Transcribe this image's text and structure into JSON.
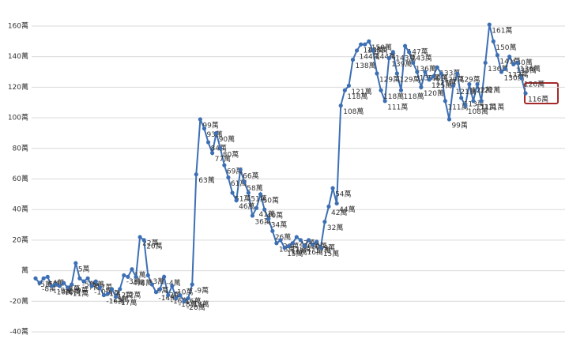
{
  "chart_data": {
    "type": "line",
    "categories": [
      null,
      null,
      null,
      null,
      null,
      null,
      null,
      null,
      null,
      null,
      null,
      null,
      null,
      null,
      null,
      null,
      null,
      null,
      null,
      null,
      null,
      null,
      null,
      null,
      null,
      null,
      null,
      null,
      null,
      null,
      null,
      null,
      null,
      null,
      null,
      null,
      null,
      null,
      null,
      null,
      null,
      null,
      null,
      null,
      null,
      null,
      null,
      null,
      null,
      null,
      null,
      null,
      null,
      null,
      null,
      null,
      null,
      null,
      null,
      null,
      null,
      null,
      null,
      null,
      null,
      null,
      null,
      null,
      null,
      null,
      null,
      null,
      null,
      null,
      null,
      null,
      null,
      null,
      null,
      null,
      null,
      null,
      null,
      null,
      null,
      null,
      null,
      null,
      null,
      null,
      null,
      null,
      null,
      null,
      null,
      null,
      null,
      null,
      null,
      null,
      null,
      null,
      null,
      null,
      null,
      null,
      null,
      null,
      null,
      null,
      null,
      null,
      null,
      null,
      null,
      null,
      null,
      null,
      null,
      null,
      null,
      null,
      null
    ],
    "series": [
      {
        "color": "#3d6fb4",
        "values": [
          -5,
          -8,
          -5,
          -4,
          -10,
          -9,
          -10,
          -8,
          -11,
          -9,
          5,
          -5,
          -7,
          -5,
          -10,
          -7,
          -11,
          -16,
          -15,
          -12,
          -17,
          -12,
          -3,
          -4,
          1,
          -4,
          22,
          20,
          -3,
          -9,
          -14,
          -12,
          -4,
          -16,
          -10,
          -18,
          -16,
          -20,
          -18,
          -9,
          63,
          99,
          93,
          84,
          77,
          90,
          80,
          69,
          61,
          51,
          46,
          66,
          58,
          51,
          36,
          41,
          50,
          40,
          34,
          26,
          18,
          20,
          15,
          16,
          18,
          22,
          20,
          16,
          20,
          17,
          19,
          15,
          32,
          42,
          54,
          44,
          108,
          118,
          121,
          138,
          144,
          148,
          148,
          150,
          144,
          129,
          118,
          111,
          139,
          143,
          129,
          118,
          147,
          143,
          136,
          130,
          120,
          130,
          125,
          127,
          133,
          129,
          111,
          99,
          121,
          129,
          113,
          108,
          122,
          111,
          122,
          111,
          136,
          161,
          150,
          141,
          130,
          132,
          140,
          135,
          136,
          126,
          116
        ],
        "value_labels": [
          "-5萬",
          "-8萬",
          "-5萬",
          "-4萬",
          "-10萬",
          "-9萬",
          "-10萬",
          "-8萬",
          "-11萬",
          "-9萬",
          "5萬",
          "-5萬",
          "-7萬",
          "-5萬",
          "-10萬",
          "-7萬",
          "-11萬",
          "-16萬",
          "-15萬",
          "-12萬",
          "-17萬",
          "-12萬",
          "-3萬",
          "-4萬",
          "1萬",
          "-4萬",
          "22萬",
          "20萬",
          "-3萬",
          "-9萬",
          "-14萬",
          "-12萬",
          "-4萬",
          "-16萬",
          "-10萬",
          "-18萬",
          "-16萬",
          "-20萬",
          "-18萬",
          "-9萬",
          "63萬",
          "99萬",
          "93萬",
          "84萬",
          "77萬",
          "90萬",
          "80萬",
          "69萬",
          "61萬",
          "51萬",
          "46萬",
          "66萬",
          "58萬",
          "51萬",
          "36萬",
          "41萬",
          "50萬",
          "40萬",
          "34萬",
          "26萬",
          "18萬",
          "20萬",
          "15萬",
          "16萬",
          "18萬",
          "22萬",
          "20萬",
          "16萬",
          "20萬",
          "17萬",
          "19萬",
          "15萬",
          "32萬",
          "42萬",
          "54萬",
          "44萬",
          "108萬",
          "118萬",
          "121萬",
          "138萬",
          "144萬",
          "148萬",
          "148萬",
          "150萬",
          "144萬",
          "129萬",
          "118萬",
          "111萬",
          "139萬",
          "143萬",
          "129萬",
          "118萬",
          "147萬",
          "143萬",
          "136萬",
          "130萬",
          "120萬",
          "130萬",
          "125萬",
          "127萬",
          "133萬",
          "129萬",
          "111萬",
          "99萬",
          "121萬",
          "129萬",
          "113萬",
          "108萬",
          "122萬",
          "111萬",
          "122萬",
          "111萬",
          "136萬",
          "161萬",
          "150萬",
          "141萬",
          "130萬",
          "132萬",
          "140萬",
          "135萬",
          "136萬",
          "126萬",
          "116萬"
        ]
      }
    ],
    "ylim": [
      -40,
      160
    ],
    "yticks": [
      {
        "value": -40,
        "label": "-40萬"
      },
      {
        "value": -20,
        "label": "-20萬"
      },
      {
        "value": 0,
        "label": "萬"
      },
      {
        "value": 20,
        "label": "20萬"
      },
      {
        "value": 40,
        "label": "40萬"
      },
      {
        "value": 60,
        "label": "60萬"
      },
      {
        "value": 80,
        "label": "80萬"
      },
      {
        "value": 100,
        "label": "100萬"
      },
      {
        "value": 120,
        "label": "120萬"
      },
      {
        "value": 140,
        "label": "140萬"
      },
      {
        "value": 160,
        "label": "160萬"
      }
    ],
    "grid": true
  }
}
